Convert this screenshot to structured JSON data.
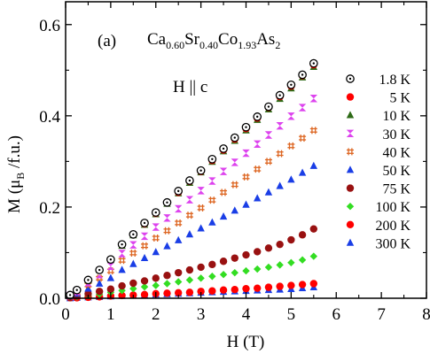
{
  "chart_data": {
    "type": "scatter",
    "panel_label": "(a)",
    "compound": {
      "base": "Ca",
      "sub1": "0.60",
      "mid1": "Sr",
      "sub2": "0.40",
      "mid2": "Co",
      "sub3": "1.93",
      "mid3": "As",
      "sub4": "2"
    },
    "annotation": "H || c",
    "xlabel": "H (T)",
    "ylabel": {
      "main": "M (μ",
      "sub": "B",
      "tail": " /f.u.)"
    },
    "xlim": [
      0,
      8
    ],
    "ylim": [
      0,
      0.65
    ],
    "x_ticks": [
      0,
      1,
      2,
      3,
      4,
      5,
      6,
      7,
      8
    ],
    "y_ticks": [
      0.0,
      0.2,
      0.4,
      0.6
    ],
    "y_tick_labels": [
      "0.0",
      "0.2",
      "0.4",
      "0.6"
    ],
    "legend_position": "right",
    "series": [
      {
        "name": "1.8 K",
        "marker": "open-circle",
        "color": "#000000",
        "x": [
          0.1,
          0.25,
          0.5,
          0.75,
          1.0,
          1.25,
          1.5,
          1.75,
          2.0,
          2.25,
          2.5,
          2.75,
          3.0,
          3.25,
          3.5,
          3.75,
          4.0,
          4.25,
          4.5,
          4.75,
          5.0,
          5.25,
          5.5
        ],
        "y": [
          0.007,
          0.018,
          0.04,
          0.062,
          0.085,
          0.118,
          0.14,
          0.165,
          0.188,
          0.21,
          0.235,
          0.258,
          0.28,
          0.305,
          0.328,
          0.352,
          0.375,
          0.398,
          0.42,
          0.445,
          0.468,
          0.49,
          0.515
        ]
      },
      {
        "name": "5 K",
        "marker": "circle",
        "color": "#ff0000",
        "x": [
          0.1,
          0.25,
          0.5,
          0.75,
          1.0,
          1.25,
          1.5,
          1.75,
          2.0,
          2.25,
          2.5,
          2.75,
          3.0,
          3.25,
          3.5,
          3.75,
          4.0,
          4.25,
          4.5,
          4.75,
          5.0,
          5.25,
          5.5
        ],
        "y": [
          0.007,
          0.018,
          0.04,
          0.062,
          0.085,
          0.117,
          0.139,
          0.163,
          0.186,
          0.209,
          0.232,
          0.256,
          0.278,
          0.302,
          0.325,
          0.349,
          0.372,
          0.395,
          0.418,
          0.442,
          0.465,
          0.488,
          0.512
        ]
      },
      {
        "name": "10 K",
        "marker": "triangle-up",
        "color": "#2d6a16",
        "x": [
          0.1,
          0.25,
          0.5,
          0.75,
          1.0,
          1.25,
          1.5,
          1.75,
          2.0,
          2.25,
          2.5,
          2.75,
          3.0,
          3.25,
          3.5,
          3.75,
          4.0,
          4.25,
          4.5,
          4.75,
          5.0,
          5.25,
          5.5
        ],
        "y": [
          0.007,
          0.018,
          0.04,
          0.062,
          0.084,
          0.115,
          0.138,
          0.161,
          0.184,
          0.207,
          0.23,
          0.253,
          0.276,
          0.299,
          0.322,
          0.345,
          0.368,
          0.391,
          0.414,
          0.437,
          0.46,
          0.484,
          0.507
        ]
      },
      {
        "name": "30 K",
        "marker": "hourglass",
        "color": "#dd44ee",
        "x": [
          0.1,
          0.25,
          0.5,
          0.75,
          1.0,
          1.25,
          1.5,
          1.75,
          2.0,
          2.25,
          2.5,
          2.75,
          3.0,
          3.25,
          3.5,
          3.75,
          4.0,
          4.25,
          4.5,
          4.75,
          5.0,
          5.25,
          5.5
        ],
        "y": [
          0.006,
          0.015,
          0.034,
          0.052,
          0.07,
          0.098,
          0.117,
          0.136,
          0.156,
          0.176,
          0.196,
          0.216,
          0.236,
          0.257,
          0.278,
          0.298,
          0.318,
          0.338,
          0.358,
          0.378,
          0.399,
          0.418,
          0.438
        ]
      },
      {
        "name": "40 K",
        "marker": "hash",
        "color": "#dd6622",
        "x": [
          0.1,
          0.25,
          0.5,
          0.75,
          1.0,
          1.25,
          1.5,
          1.75,
          2.0,
          2.25,
          2.5,
          2.75,
          3.0,
          3.25,
          3.5,
          3.75,
          4.0,
          4.25,
          4.5,
          4.75,
          5.0,
          5.25,
          5.5
        ],
        "y": [
          0.005,
          0.013,
          0.029,
          0.044,
          0.06,
          0.083,
          0.099,
          0.115,
          0.132,
          0.148,
          0.165,
          0.182,
          0.198,
          0.215,
          0.232,
          0.249,
          0.266,
          0.283,
          0.3,
          0.317,
          0.334,
          0.351,
          0.368
        ]
      },
      {
        "name": "50 K",
        "marker": "triangle-up",
        "color": "#1a3ee6",
        "x": [
          0.1,
          0.25,
          0.5,
          0.75,
          1.0,
          1.25,
          1.5,
          1.75,
          2.0,
          2.25,
          2.5,
          2.75,
          3.0,
          3.25,
          3.5,
          3.75,
          4.0,
          4.25,
          4.5,
          4.75,
          5.0,
          5.25,
          5.5
        ],
        "y": [
          0.004,
          0.01,
          0.021,
          0.032,
          0.044,
          0.062,
          0.075,
          0.088,
          0.101,
          0.114,
          0.127,
          0.14,
          0.153,
          0.166,
          0.179,
          0.192,
          0.205,
          0.219,
          0.232,
          0.246,
          0.26,
          0.275,
          0.29
        ]
      },
      {
        "name": "75 K",
        "marker": "circle",
        "color": "#991111",
        "x": [
          0.1,
          0.25,
          0.5,
          0.75,
          1.0,
          1.25,
          1.5,
          1.75,
          2.0,
          2.25,
          2.5,
          2.75,
          3.0,
          3.25,
          3.5,
          3.75,
          4.0,
          4.25,
          4.5,
          4.75,
          5.0,
          5.25,
          5.5
        ],
        "y": [
          0.002,
          0.005,
          0.01,
          0.015,
          0.02,
          0.027,
          0.033,
          0.038,
          0.044,
          0.05,
          0.056,
          0.062,
          0.068,
          0.074,
          0.081,
          0.088,
          0.095,
          0.102,
          0.11,
          0.118,
          0.128,
          0.139,
          0.152
        ]
      },
      {
        "name": "100 K",
        "marker": "diamond",
        "color": "#33dd22",
        "x": [
          0.1,
          0.25,
          0.5,
          0.75,
          1.0,
          1.25,
          1.5,
          1.75,
          2.0,
          2.25,
          2.5,
          2.75,
          3.0,
          3.25,
          3.5,
          3.75,
          4.0,
          4.25,
          4.5,
          4.75,
          5.0,
          5.25,
          5.5
        ],
        "y": [
          0.001,
          0.003,
          0.006,
          0.009,
          0.013,
          0.017,
          0.021,
          0.025,
          0.028,
          0.032,
          0.036,
          0.04,
          0.044,
          0.048,
          0.052,
          0.056,
          0.06,
          0.064,
          0.068,
          0.073,
          0.078,
          0.084,
          0.092
        ]
      },
      {
        "name": "200 K",
        "marker": "circle",
        "color": "#ff0000",
        "x": [
          0.1,
          0.25,
          0.5,
          0.75,
          1.0,
          1.25,
          1.5,
          1.75,
          2.0,
          2.25,
          2.5,
          2.75,
          3.0,
          3.25,
          3.5,
          3.75,
          4.0,
          4.25,
          4.5,
          4.75,
          5.0,
          5.25,
          5.5
        ],
        "y": [
          0.001,
          0.001,
          0.002,
          0.003,
          0.005,
          0.006,
          0.007,
          0.008,
          0.01,
          0.011,
          0.012,
          0.013,
          0.015,
          0.016,
          0.018,
          0.019,
          0.021,
          0.022,
          0.024,
          0.026,
          0.028,
          0.03,
          0.032
        ]
      },
      {
        "name": "300 K",
        "marker": "triangle-up",
        "color": "#1a3ee6",
        "x": [
          0.1,
          0.25,
          0.5,
          0.75,
          1.0,
          1.25,
          1.5,
          1.75,
          2.0,
          2.25,
          2.5,
          2.75,
          3.0,
          3.25,
          3.5,
          3.75,
          4.0,
          4.25,
          4.5,
          4.75,
          5.0,
          5.25,
          5.5
        ],
        "y": [
          0.0,
          0.001,
          0.002,
          0.003,
          0.004,
          0.005,
          0.006,
          0.007,
          0.008,
          0.009,
          0.01,
          0.011,
          0.012,
          0.013,
          0.014,
          0.015,
          0.016,
          0.017,
          0.018,
          0.019,
          0.02,
          0.022,
          0.024
        ]
      }
    ]
  }
}
